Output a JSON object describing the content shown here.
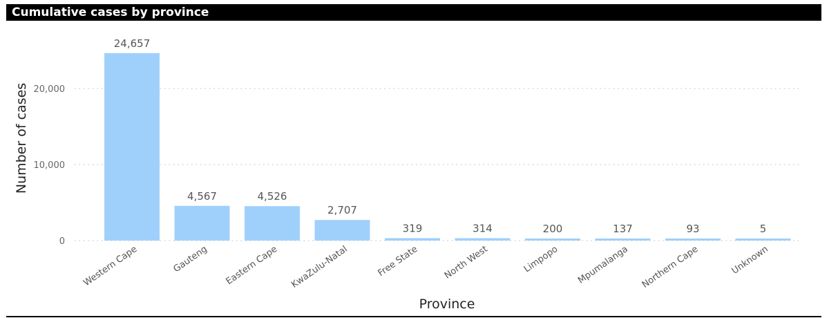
{
  "header": {
    "title": "Cumulative cases by province"
  },
  "colors": {
    "bar": "#9fd0fb",
    "title_bg": "#000000",
    "title_fg": "#ffffff",
    "grid": "#c8c8c8"
  },
  "chart_data": {
    "type": "bar",
    "title": "Cumulative cases by province",
    "xlabel": "Province",
    "ylabel": "Number of cases",
    "categories": [
      "Western Cape",
      "Gauteng",
      "Eastern Cape",
      "KwaZulu-Natal",
      "Free State",
      "North West",
      "Limpopo",
      "Mpumalanga",
      "Northern Cape",
      "Unknown"
    ],
    "values": [
      24657,
      4567,
      4526,
      2707,
      319,
      314,
      200,
      137,
      93,
      5
    ],
    "data_labels": [
      "24,657",
      "4,567",
      "4,526",
      "2,707",
      "319",
      "314",
      "200",
      "137",
      "93",
      "5"
    ],
    "yticks": [
      0,
      10000,
      20000
    ],
    "ytick_labels": [
      "0",
      "10,000",
      "20,000"
    ],
    "grid": true,
    "grid_style": "dotted",
    "legend": "none"
  }
}
